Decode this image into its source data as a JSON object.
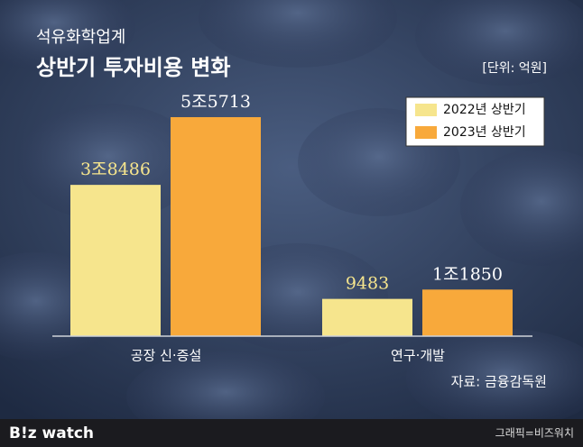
{
  "chart_data": {
    "type": "bar",
    "subtitle": "석유화학업계",
    "title": "상반기 투자비용 변화",
    "unit": "[단위: 억원]",
    "source": "자료: 금융감독원",
    "categories": [
      "공장 신·증설",
      "연구·개발"
    ],
    "series": [
      {
        "name": "2022년 상반기",
        "color": "#f6e58d",
        "values": [
          38486,
          9483
        ],
        "value_labels": [
          "3조8486",
          "9483"
        ]
      },
      {
        "name": "2023년 상반기",
        "color": "#f8a93b",
        "values": [
          55713,
          11850
        ],
        "value_labels": [
          "5조5713",
          "1조1850"
        ]
      }
    ],
    "ylim": [
      0,
      60000
    ],
    "legend": "top-right"
  },
  "brand": "B!z watch",
  "credit": "그래픽=비즈워치"
}
